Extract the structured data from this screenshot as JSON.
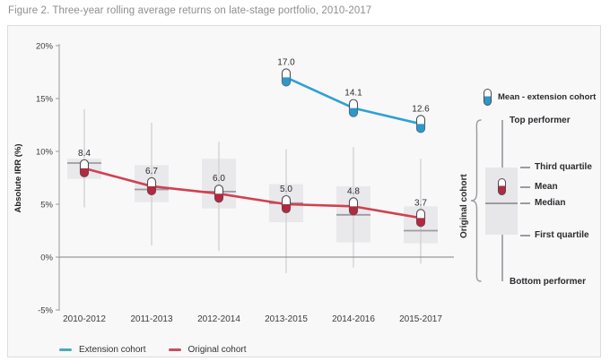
{
  "figure_title": "Figure 2. Three-year rolling average returns on late-stage portfolio, 2010-2017",
  "colors": {
    "extension_line": "#2fa0d6",
    "extension_fill": "#2f96c9",
    "original_line": "#d2404e",
    "original_fill": "#b02a40",
    "extension_swatch": "#4aabb3",
    "original_swatch": "#c25064",
    "box_fill": "#e9e9ec",
    "whisker": "#d2d2d7",
    "median": "#9b9ba1",
    "axis_line": "#9a9aa0",
    "zero_line": "#97979c",
    "marker_outline": "#4d4d52"
  },
  "chart_data": {
    "type": "combo",
    "subtype": "boxplot+line",
    "title": "Figure 2. Three-year rolling average returns on late-stage portfolio, 2010-2017",
    "categories": [
      "2010-2012",
      "2011-2013",
      "2012-2014",
      "2013-2015",
      "2014-2016",
      "2015-2017"
    ],
    "xlabel": "",
    "ylabel": "Absolute IRR (%)",
    "ylim": [
      -5,
      20
    ],
    "yticks": [
      20,
      15,
      10,
      5,
      0,
      -5
    ],
    "ytick_suffix": "%",
    "grid": false,
    "marker": "pill",
    "series": [
      {
        "name": "Extension cohort",
        "type": "line",
        "color_key": "extension",
        "values": [
          null,
          null,
          null,
          17.0,
          14.1,
          12.6
        ]
      },
      {
        "name": "Original cohort",
        "type": "line",
        "color_key": "original",
        "values": [
          8.4,
          6.7,
          6.0,
          5.0,
          4.8,
          3.7
        ]
      }
    ],
    "boxplots": [
      {
        "category": "2010-2012",
        "top": 14.0,
        "q3": 9.3,
        "median": 8.9,
        "mean": 8.4,
        "q1": 7.4,
        "bottom": 4.7
      },
      {
        "category": "2011-2013",
        "top": 12.7,
        "q3": 8.7,
        "median": 6.4,
        "mean": 6.7,
        "q1": 5.2,
        "bottom": 1.1
      },
      {
        "category": "2012-2014",
        "top": 10.9,
        "q3": 9.3,
        "median": 6.2,
        "mean": 6.0,
        "q1": 4.6,
        "bottom": 0.6
      },
      {
        "category": "2013-2015",
        "top": 10.2,
        "q3": 6.9,
        "median": 5.1,
        "mean": 5.0,
        "q1": 3.3,
        "bottom": -1.5
      },
      {
        "category": "2014-2016",
        "top": 10.4,
        "q3": 6.7,
        "median": 4.0,
        "mean": 4.8,
        "q1": 1.4,
        "bottom": -1.0
      },
      {
        "category": "2015-2017",
        "top": 9.3,
        "q3": 4.8,
        "median": 2.5,
        "mean": 3.7,
        "q1": 1.3,
        "bottom": -0.6
      }
    ]
  },
  "legend": {
    "items": [
      {
        "label": "Extension cohort",
        "color_key": "extension_swatch"
      },
      {
        "label": "Original cohort",
        "color_key": "original_swatch"
      }
    ]
  },
  "right_legend": {
    "mean_extension_label": "Mean - extension cohort",
    "group_label": "Original cohort",
    "top_performer": "Top performer",
    "third_quartile": "Third quartile",
    "mean": "Mean",
    "median": "Median",
    "first_quartile": "First quartile",
    "bottom_performer": "Bottom performer"
  }
}
